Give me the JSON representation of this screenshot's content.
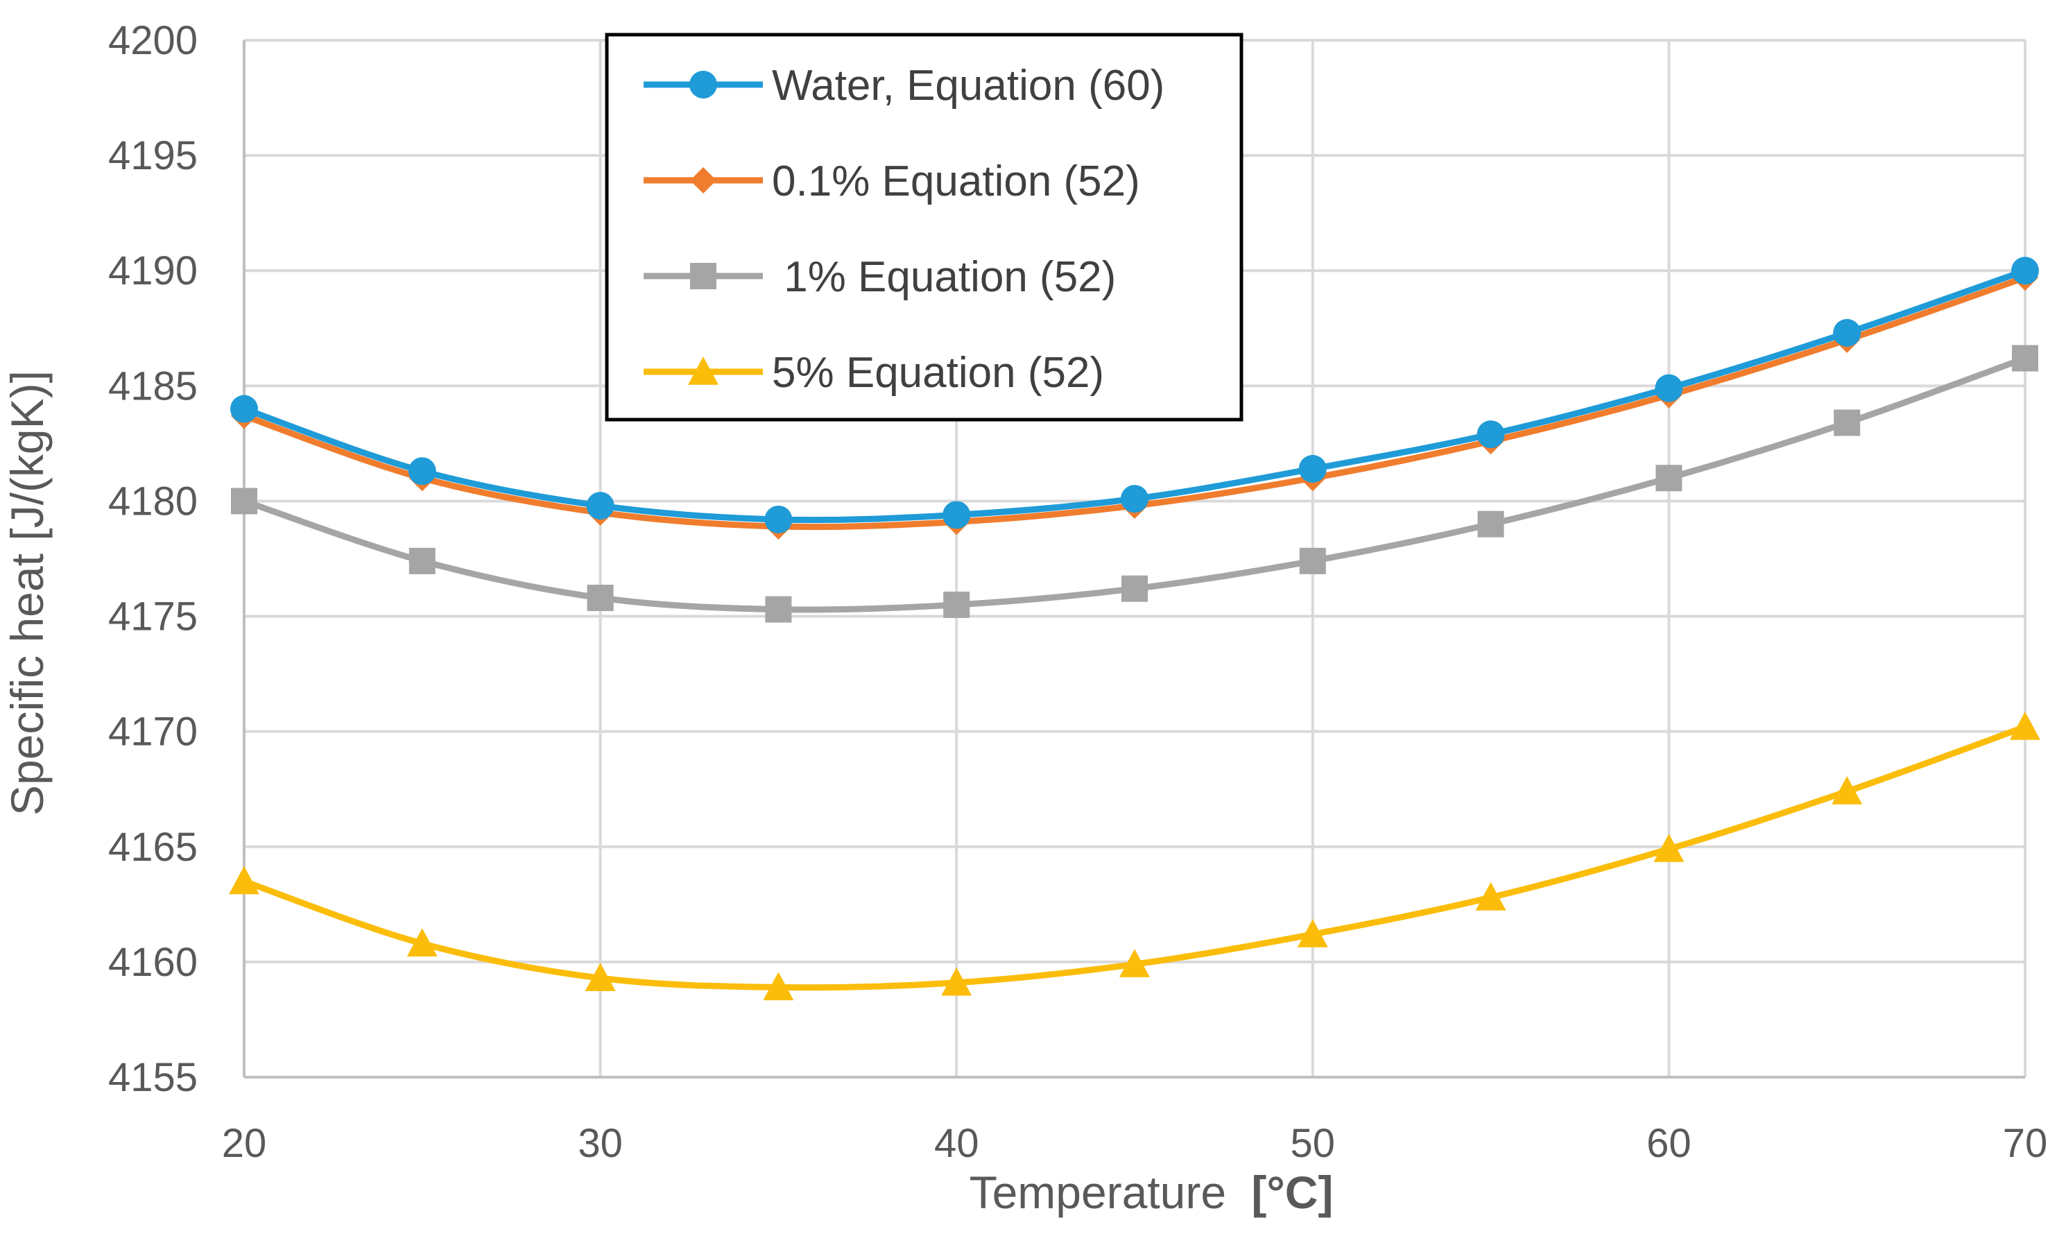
{
  "chart_data": {
    "type": "line",
    "title": "",
    "xlabel": "Temperature",
    "xlabel_unit": "[°C]",
    "ylabel": "Specific heat [J/(kgK)]",
    "xlim": [
      20,
      70
    ],
    "ylim": [
      4155,
      4200
    ],
    "x_ticks": [
      20,
      30,
      40,
      50,
      60,
      70
    ],
    "y_ticks": [
      4155,
      4160,
      4165,
      4170,
      4175,
      4180,
      4185,
      4190,
      4195,
      4200
    ],
    "grid": true,
    "legend_position": "top-center",
    "x": [
      20,
      25,
      30,
      35,
      40,
      45,
      50,
      55,
      60,
      65,
      70
    ],
    "series": [
      {
        "name": "Water, Equation (60)",
        "color": "#1f9bd7",
        "marker": "circle",
        "values": [
          4184.0,
          4181.3,
          4179.8,
          4179.2,
          4179.4,
          4180.1,
          4181.4,
          4182.9,
          4184.9,
          4187.3,
          4190.0
        ]
      },
      {
        "name": "0.1% Equation (52)",
        "color": "#f07c2d",
        "marker": "diamond",
        "values": [
          4183.7,
          4181.0,
          4179.5,
          4178.9,
          4179.1,
          4179.8,
          4181.0,
          4182.6,
          4184.6,
          4187.0,
          4189.7
        ]
      },
      {
        "name": " 1% Equation (52)",
        "color": "#a5a5a5",
        "marker": "square",
        "values": [
          4180.0,
          4177.4,
          4175.8,
          4175.3,
          4175.5,
          4176.2,
          4177.4,
          4179.0,
          4181.0,
          4183.4,
          4186.2
        ]
      },
      {
        "name": "5% Equation (52)",
        "color": "#fbbd0a",
        "marker": "triangle",
        "values": [
          4163.5,
          4160.8,
          4159.3,
          4158.9,
          4159.1,
          4159.9,
          4161.2,
          4162.8,
          4164.9,
          4167.4,
          4170.2
        ]
      }
    ]
  }
}
